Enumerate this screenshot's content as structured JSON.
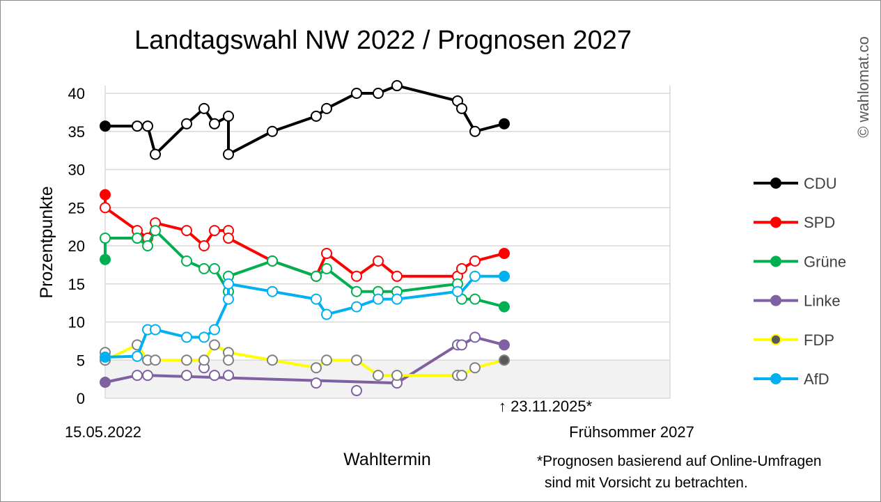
{
  "chart_data": {
    "type": "line",
    "title": "Landtagswahl NW 2022 / Prognosen 2027",
    "xlabel": "Wahltermin",
    "ylabel": "Prozentpunkte",
    "x_start_label": "15.05.2022",
    "x_end_label": "Frühsommer 2027",
    "ylim": [
      0,
      41
    ],
    "yticks": [
      0,
      5,
      10,
      15,
      20,
      25,
      30,
      35,
      40
    ],
    "grid": true,
    "legend_position": "right",
    "highlight_band": {
      "from": 0,
      "to": 5,
      "color": "#f2f2f2"
    },
    "annotation": "↑ 23.11.2025*",
    "footnote_lines": [
      "*Prognosen basierend auf Online-Umfragen",
      "sind mit Vorsicht zu betrachten."
    ],
    "copyright": "© wahlomat.co",
    "series": [
      {
        "name": "CDU",
        "color": "#000000",
        "marker_fill": "#ffffff",
        "end_fill": "#000000",
        "line_points": [
          [
            0,
            35.7
          ],
          [
            46,
            35.7
          ],
          [
            61,
            35.7
          ],
          [
            72,
            32
          ],
          [
            117,
            36
          ],
          [
            142,
            38
          ],
          [
            157,
            36
          ],
          [
            177,
            37
          ],
          [
            177,
            32
          ],
          [
            240,
            35
          ],
          [
            303,
            37
          ],
          [
            318,
            38
          ],
          [
            361,
            40
          ],
          [
            392,
            40
          ],
          [
            419,
            41
          ],
          [
            506,
            39
          ],
          [
            512,
            38
          ],
          [
            531,
            35
          ],
          [
            573,
            36
          ]
        ],
        "markers": [
          [
            0,
            35.7,
            "f"
          ],
          [
            46,
            35.7,
            "h"
          ],
          [
            61,
            35.7,
            "h"
          ],
          [
            72,
            32,
            "h"
          ],
          [
            117,
            36,
            "h"
          ],
          [
            142,
            38,
            "h"
          ],
          [
            157,
            36,
            "h"
          ],
          [
            177,
            37,
            "h"
          ],
          [
            177,
            32,
            "h"
          ],
          [
            240,
            35,
            "h"
          ],
          [
            303,
            37,
            "h"
          ],
          [
            318,
            38,
            "h"
          ],
          [
            361,
            40,
            "h"
          ],
          [
            392,
            40,
            "h"
          ],
          [
            419,
            41,
            "h"
          ],
          [
            506,
            39,
            "h"
          ],
          [
            512,
            38,
            "h"
          ],
          [
            531,
            35,
            "h"
          ],
          [
            573,
            36,
            "f"
          ]
        ]
      },
      {
        "name": "SPD",
        "color": "#ff0000",
        "marker_fill": "#ffffff",
        "end_fill": "#ff0000",
        "line_points": [
          [
            0,
            26.7
          ],
          [
            0,
            25
          ],
          [
            46,
            22
          ],
          [
            61,
            21
          ],
          [
            72,
            23
          ],
          [
            117,
            22
          ],
          [
            142,
            20
          ],
          [
            157,
            22
          ],
          [
            177,
            22
          ],
          [
            177,
            21
          ],
          [
            240,
            18
          ],
          [
            303,
            16
          ],
          [
            318,
            19
          ],
          [
            361,
            16
          ],
          [
            392,
            18
          ],
          [
            419,
            16
          ],
          [
            506,
            16
          ],
          [
            512,
            17
          ],
          [
            531,
            18
          ],
          [
            573,
            19
          ]
        ],
        "markers": [
          [
            0,
            26.7,
            "f"
          ],
          [
            0,
            25,
            "h"
          ],
          [
            46,
            22,
            "h"
          ],
          [
            61,
            21,
            "h"
          ],
          [
            72,
            23,
            "h"
          ],
          [
            117,
            22,
            "h"
          ],
          [
            142,
            20,
            "h"
          ],
          [
            157,
            22,
            "h"
          ],
          [
            177,
            22,
            "h"
          ],
          [
            177,
            21,
            "h"
          ],
          [
            240,
            18,
            "h"
          ],
          [
            303,
            16,
            "h"
          ],
          [
            318,
            19,
            "h"
          ],
          [
            361,
            16,
            "h"
          ],
          [
            392,
            18,
            "h"
          ],
          [
            419,
            16,
            "h"
          ],
          [
            506,
            16,
            "h"
          ],
          [
            512,
            17,
            "h"
          ],
          [
            531,
            18,
            "h"
          ],
          [
            573,
            19,
            "f"
          ]
        ]
      },
      {
        "name": "Grüne",
        "color": "#00b050",
        "marker_fill": "#ffffff",
        "end_fill": "#00b050",
        "line_points": [
          [
            0,
            18.2
          ],
          [
            0,
            21
          ],
          [
            46,
            21
          ],
          [
            61,
            20
          ],
          [
            72,
            22
          ],
          [
            117,
            18
          ],
          [
            142,
            17
          ],
          [
            157,
            17
          ],
          [
            177,
            14
          ],
          [
            177,
            16
          ],
          [
            240,
            18
          ],
          [
            303,
            16
          ],
          [
            318,
            17
          ],
          [
            361,
            14
          ],
          [
            392,
            14
          ],
          [
            419,
            14
          ],
          [
            506,
            15
          ],
          [
            512,
            13
          ],
          [
            531,
            13
          ],
          [
            573,
            12
          ]
        ],
        "markers": [
          [
            0,
            18.2,
            "f"
          ],
          [
            0,
            21,
            "h"
          ],
          [
            46,
            21,
            "h"
          ],
          [
            61,
            20,
            "h"
          ],
          [
            72,
            22,
            "h"
          ],
          [
            117,
            18,
            "h"
          ],
          [
            142,
            17,
            "h"
          ],
          [
            157,
            17,
            "h"
          ],
          [
            177,
            14,
            "h"
          ],
          [
            177,
            16,
            "h"
          ],
          [
            240,
            18,
            "h"
          ],
          [
            303,
            16,
            "h"
          ],
          [
            318,
            17,
            "h"
          ],
          [
            361,
            14,
            "h"
          ],
          [
            392,
            14,
            "h"
          ],
          [
            419,
            14,
            "h"
          ],
          [
            506,
            15,
            "h"
          ],
          [
            512,
            13,
            "h"
          ],
          [
            531,
            13,
            "h"
          ],
          [
            573,
            12,
            "f"
          ]
        ]
      },
      {
        "name": "Linke",
        "color": "#7f60a0",
        "marker_fill": "#ffffff",
        "end_fill": "#7f60a0",
        "line_points": [
          [
            0,
            2.1
          ],
          [
            46,
            3
          ],
          [
            61,
            3
          ],
          [
            419,
            2
          ],
          [
            506,
            7
          ],
          [
            512,
            7
          ],
          [
            531,
            8
          ],
          [
            573,
            7
          ]
        ],
        "markers": [
          [
            0,
            2.1,
            "f"
          ],
          [
            46,
            3,
            "h"
          ],
          [
            61,
            3,
            "h"
          ],
          [
            117,
            3,
            "h"
          ],
          [
            142,
            4,
            "h"
          ],
          [
            157,
            3,
            "h"
          ],
          [
            177,
            3,
            "h"
          ],
          [
            303,
            2,
            "h"
          ],
          [
            361,
            1,
            "h"
          ],
          [
            419,
            2,
            "h"
          ],
          [
            506,
            7,
            "h"
          ],
          [
            512,
            7,
            "h"
          ],
          [
            531,
            8,
            "h"
          ],
          [
            573,
            7,
            "f"
          ]
        ]
      },
      {
        "name": "FDP",
        "color": "#ffff00",
        "marker_fill": "#ffffff",
        "end_fill": "#595959",
        "marker_stroke": "#7f7f7f",
        "line_points": [
          [
            0,
            6
          ],
          [
            0,
            5
          ],
          [
            46,
            7
          ],
          [
            61,
            5
          ],
          [
            72,
            5
          ],
          [
            117,
            5
          ],
          [
            142,
            5
          ],
          [
            157,
            7
          ],
          [
            177,
            6
          ],
          [
            240,
            5
          ],
          [
            303,
            4
          ],
          [
            318,
            5
          ],
          [
            361,
            5
          ],
          [
            392,
            3
          ],
          [
            419,
            3
          ],
          [
            506,
            3
          ],
          [
            512,
            3
          ],
          [
            531,
            4
          ],
          [
            573,
            5
          ]
        ],
        "markers": [
          [
            0,
            6,
            "h"
          ],
          [
            0,
            5,
            "h"
          ],
          [
            46,
            7,
            "h"
          ],
          [
            61,
            5,
            "h"
          ],
          [
            72,
            5,
            "h"
          ],
          [
            117,
            5,
            "h"
          ],
          [
            142,
            5,
            "h"
          ],
          [
            157,
            7,
            "h"
          ],
          [
            177,
            6,
            "h"
          ],
          [
            177,
            5,
            "h"
          ],
          [
            240,
            5,
            "h"
          ],
          [
            303,
            4,
            "h"
          ],
          [
            318,
            5,
            "h"
          ],
          [
            361,
            5,
            "h"
          ],
          [
            392,
            3,
            "h"
          ],
          [
            419,
            3,
            "h"
          ],
          [
            506,
            3,
            "h"
          ],
          [
            512,
            3,
            "h"
          ],
          [
            531,
            4,
            "h"
          ],
          [
            573,
            5,
            "f"
          ]
        ]
      },
      {
        "name": "AfD",
        "color": "#00b0f0",
        "marker_fill": "#ffffff",
        "end_fill": "#00b0f0",
        "line_points": [
          [
            0,
            5.4
          ],
          [
            46,
            5.5
          ],
          [
            61,
            9
          ],
          [
            72,
            9
          ],
          [
            117,
            8
          ],
          [
            142,
            8
          ],
          [
            157,
            9
          ],
          [
            177,
            13
          ],
          [
            177,
            15
          ],
          [
            240,
            14
          ],
          [
            303,
            13
          ],
          [
            318,
            11
          ],
          [
            361,
            12
          ],
          [
            392,
            13
          ],
          [
            419,
            13
          ],
          [
            506,
            14
          ],
          [
            512,
            14
          ],
          [
            531,
            16
          ],
          [
            573,
            16
          ]
        ],
        "markers": [
          [
            0,
            5.4,
            "f"
          ],
          [
            46,
            5.5,
            "h"
          ],
          [
            61,
            9,
            "h"
          ],
          [
            72,
            9,
            "h"
          ],
          [
            117,
            8,
            "h"
          ],
          [
            142,
            8,
            "h"
          ],
          [
            157,
            9,
            "h"
          ],
          [
            177,
            13,
            "h"
          ],
          [
            177,
            15,
            "h"
          ],
          [
            240,
            14,
            "h"
          ],
          [
            303,
            13,
            "h"
          ],
          [
            318,
            11,
            "h"
          ],
          [
            361,
            12,
            "h"
          ],
          [
            392,
            13,
            "h"
          ],
          [
            419,
            13,
            "h"
          ],
          [
            506,
            14,
            "h"
          ],
          [
            531,
            16,
            "h"
          ],
          [
            573,
            16,
            "f"
          ]
        ]
      }
    ]
  }
}
